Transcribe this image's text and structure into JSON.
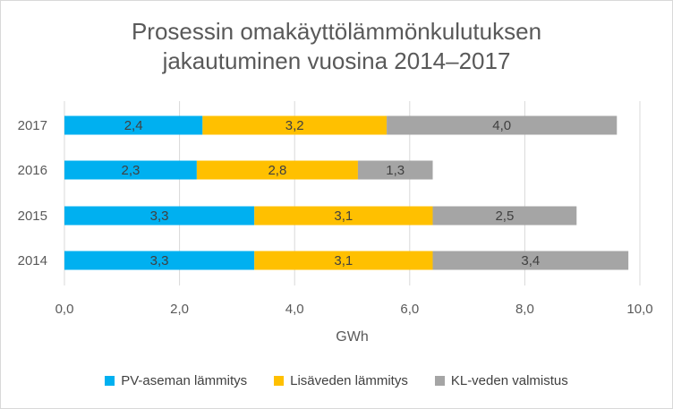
{
  "chart_data": {
    "type": "bar",
    "orientation": "horizontal",
    "stacked": true,
    "title_lines": [
      "Prosessin omakäyttölämmönkulutuksen",
      "jakautuminen vuosina 2014–2017"
    ],
    "categories": [
      "2014",
      "2015",
      "2016",
      "2017"
    ],
    "series": [
      {
        "name": "PV-aseman lämmitys",
        "color": "#00b0f0",
        "values": [
          3.3,
          3.3,
          2.3,
          2.4
        ],
        "labels": [
          "3,3",
          "3,3",
          "2,3",
          "2,4"
        ]
      },
      {
        "name": "Lisäveden lämmitys",
        "color": "#ffc000",
        "values": [
          3.1,
          3.1,
          2.8,
          3.2
        ],
        "labels": [
          "3,1",
          "3,1",
          "2,8",
          "3,2"
        ]
      },
      {
        "name": "KL-veden valmistus",
        "color": "#a5a5a5",
        "values": [
          3.4,
          2.5,
          1.3,
          4.0
        ],
        "labels": [
          "3,4",
          "2,5",
          "1,3",
          "4,0"
        ]
      }
    ],
    "xlabel": "GWh",
    "xlim": [
      0,
      10
    ],
    "xticks": [
      "0,0",
      "2,0",
      "4,0",
      "6,0",
      "8,0",
      "10,0"
    ],
    "gridlines": true,
    "legend_position": "bottom"
  }
}
